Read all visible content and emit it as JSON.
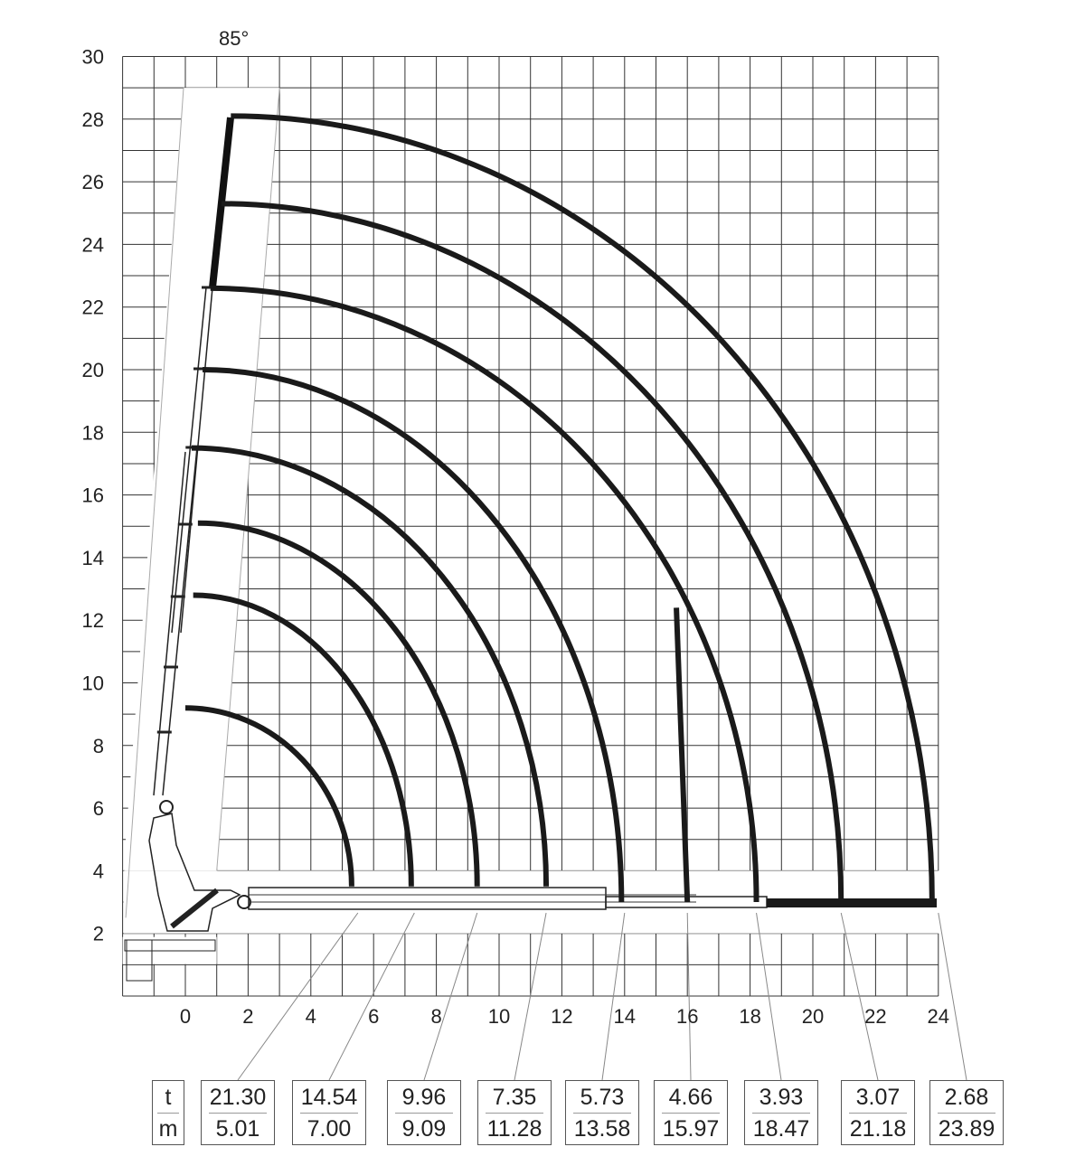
{
  "angle_label": "85°",
  "y_axis": {
    "ticks": [
      "30",
      "28",
      "26",
      "24",
      "22",
      "20",
      "18",
      "16",
      "14",
      "12",
      "10",
      "8",
      "6",
      "4",
      "2"
    ],
    "tick_values": [
      30,
      28,
      26,
      24,
      22,
      20,
      18,
      16,
      14,
      12,
      10,
      8,
      6,
      4,
      2
    ]
  },
  "x_axis": {
    "ticks": [
      "0",
      "2",
      "4",
      "6",
      "8",
      "10",
      "12",
      "14",
      "16",
      "18",
      "20",
      "22",
      "24"
    ],
    "tick_values": [
      0,
      2,
      4,
      6,
      8,
      10,
      12,
      14,
      16,
      18,
      20,
      22,
      24
    ]
  },
  "load_table": {
    "header": {
      "load_unit": "t",
      "radius_unit": "m"
    },
    "entries": [
      {
        "load": "21.30",
        "radius": "5.01"
      },
      {
        "load": "14.54",
        "radius": "7.00"
      },
      {
        "load": "9.96",
        "radius": "9.09"
      },
      {
        "load": "7.35",
        "radius": "11.28"
      },
      {
        "load": "5.73",
        "radius": "13.58"
      },
      {
        "load": "4.66",
        "radius": "15.97"
      },
      {
        "load": "3.93",
        "radius": "18.47"
      },
      {
        "load": "3.07",
        "radius": "21.18"
      },
      {
        "load": "2.68",
        "radius": "23.89"
      }
    ]
  },
  "reach_arcs_m": [
    {
      "top_x": 0,
      "top_height": 9.2,
      "reach": 5.3,
      "end_height": 3.5
    },
    {
      "top_x": 0.25,
      "top_height": 12.8,
      "reach": 7.2,
      "end_height": 3.5
    },
    {
      "top_x": 0.4,
      "top_height": 15.1,
      "reach": 9.3,
      "end_height": 3.5
    },
    {
      "top_x": 0.2,
      "top_height": 17.5,
      "reach": 11.5,
      "end_height": 3.5
    },
    {
      "top_x": 0.55,
      "top_height": 20.0,
      "reach": 13.9,
      "end_height": 3.0
    },
    {
      "top_x": 0.8,
      "top_height": 22.6,
      "reach": 18.2,
      "end_height": 3.0
    },
    {
      "top_x": 1.15,
      "top_height": 25.3,
      "reach": 20.9,
      "end_height": 3.0
    },
    {
      "top_x": 1.45,
      "top_height": 28.1,
      "reach": 23.8,
      "end_height": 3.0
    }
  ],
  "leader_points_m": [
    5.5,
    7.3,
    9.3,
    11.5,
    14.0,
    16.0,
    18.2,
    20.9,
    24.0
  ],
  "colors": {
    "grid": "#333333",
    "arc": "#1a1a1a",
    "leader": "#888888"
  }
}
